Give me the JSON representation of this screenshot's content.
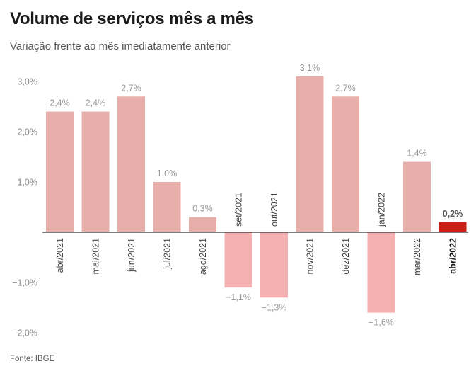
{
  "header": {
    "title": "Volume de serviços mês a mês",
    "subtitle": "Variação frente ao mês imediatamente anterior"
  },
  "footer": {
    "source": "Fonte: IBGE"
  },
  "colors": {
    "bar_positive": "#e8aeaa",
    "bar_negative": "#f5b0b1",
    "bar_highlight": "#cc1f16",
    "data_label": "#9a9a9a",
    "data_label_highlight": "#555555",
    "tick_label": "#8a8a8a",
    "baseline": "#333333"
  },
  "chart_data": {
    "type": "bar",
    "title": "Volume de serviços mês a mês",
    "subtitle": "Variação frente ao mês imediatamente anterior",
    "categories": [
      "abr/2021",
      "mai/2021",
      "jun/2021",
      "jul/2021",
      "ago/2021",
      "set/2021",
      "out/2021",
      "nov/2021",
      "dez/2021",
      "jan/2022",
      "mar/2022",
      "abr/2022"
    ],
    "values": [
      2.4,
      2.4,
      2.7,
      1.0,
      0.3,
      -1.1,
      -1.3,
      3.1,
      2.7,
      -1.6,
      1.4,
      0.2
    ],
    "data_labels": [
      "2,4%",
      "2,4%",
      "2,7%",
      "1,0%",
      "0,3%",
      "−1,1%",
      "−1,3%",
      "3,1%",
      "2,7%",
      "−1,6%",
      "1,4%",
      "0,2%"
    ],
    "highlight_index": 11,
    "y_ticks": [
      3,
      2,
      1,
      -1,
      -2
    ],
    "y_tick_labels": [
      "3,0%",
      "2,0%",
      "1,0%",
      "−1,0%",
      "−2,0%"
    ],
    "ylim": [
      -2,
      3
    ],
    "grid": false,
    "xlabel": "",
    "ylabel": ""
  }
}
